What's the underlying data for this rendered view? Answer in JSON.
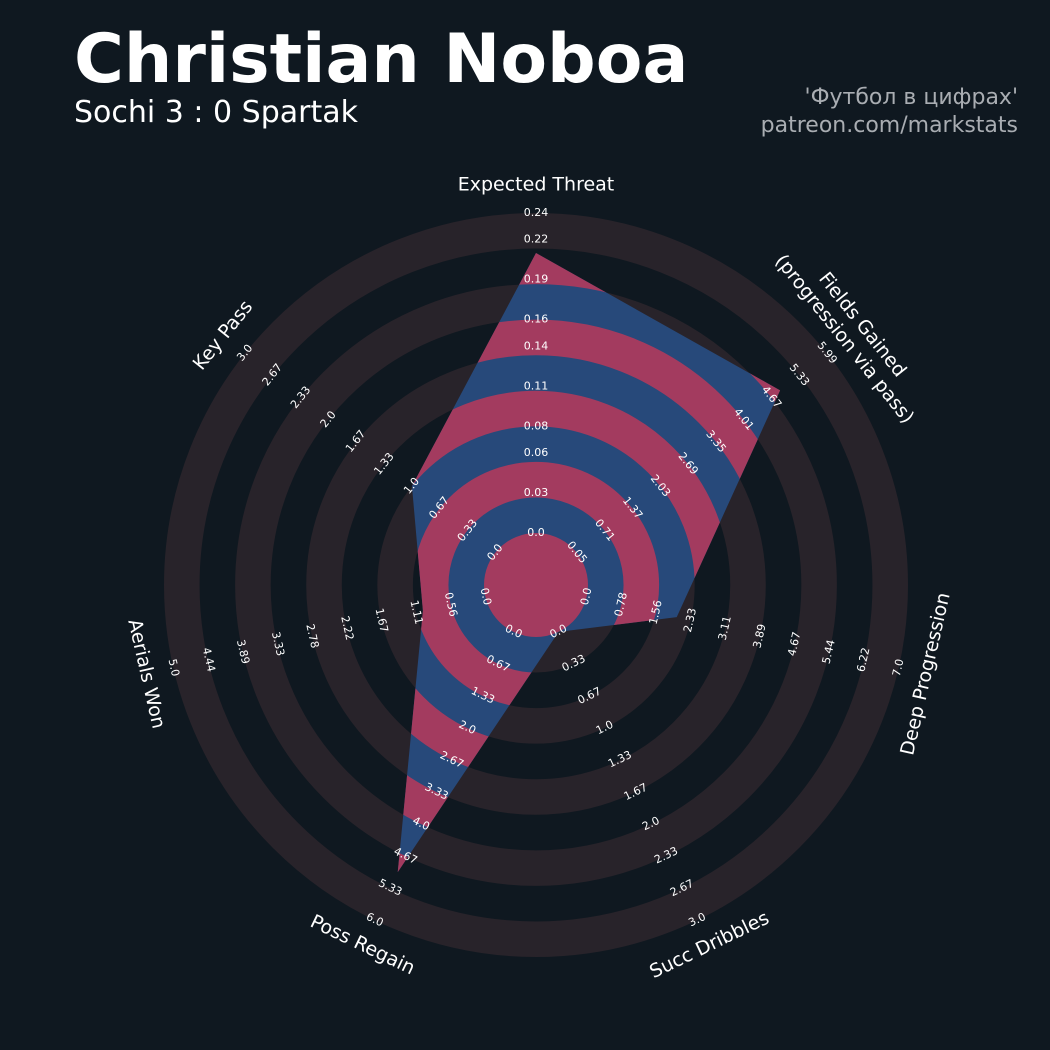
{
  "chart_data": {
    "type": "radar",
    "title": "Christian Noboa",
    "subtitle": "Sochi 3 : 0 Spartak",
    "credits": [
      "'Футбол в цифрах'",
      "patreon.com/markstats"
    ],
    "params": [
      {
        "label": "Expected Threat",
        "lim": [
          0,
          0.24
        ],
        "ticks": [
          {
            "value": 0,
            "label": "0.0"
          },
          0.03,
          0.06,
          0.08,
          0.11,
          0.14,
          0.16,
          0.19,
          0.22,
          0.24
        ]
      },
      {
        "label": [
          "Fields Gained",
          "(progression via pass)"
        ],
        "lim": [
          0.05,
          5.99
        ],
        "ticks": [
          0.05,
          0.71,
          1.37,
          2.03,
          2.69,
          3.35,
          4.01,
          4.67,
          5.33,
          5.99
        ]
      },
      {
        "label": "Deep Progression",
        "lim": [
          0,
          7
        ],
        "ticks": [
          {
            "value": 0,
            "label": "0.0"
          },
          0.78,
          1.56,
          2.33,
          3.11,
          3.89,
          4.67,
          5.44,
          6.22,
          {
            "value": 7,
            "label": "7.0"
          }
        ]
      },
      {
        "label": "Succ Dribbles",
        "lim": [
          0,
          3
        ],
        "ticks": [
          {
            "value": 0,
            "label": "0.0"
          },
          0.33,
          0.67,
          {
            "value": 1,
            "label": "1.0"
          },
          1.33,
          1.67,
          {
            "value": 2,
            "label": "2.0"
          },
          2.33,
          2.67,
          {
            "value": 3,
            "label": "3.0"
          }
        ]
      },
      {
        "label": "Poss Regain",
        "lim": [
          0,
          6
        ],
        "ticks": [
          {
            "value": 0,
            "label": "0.0"
          },
          0.67,
          1.33,
          {
            "value": 2,
            "label": "2.0"
          },
          2.67,
          3.33,
          {
            "value": 4,
            "label": "4.0"
          },
          4.67,
          5.33,
          {
            "value": 6,
            "label": "6.0"
          }
        ]
      },
      {
        "label": "Aerials Won",
        "lim": [
          0,
          5
        ],
        "ticks": [
          {
            "value": 0,
            "label": "0.0"
          },
          0.56,
          1.11,
          1.67,
          2.22,
          2.78,
          3.33,
          3.89,
          4.44,
          {
            "value": 5,
            "label": "5.0"
          }
        ]
      },
      {
        "label": "Key Pass",
        "lim": [
          0,
          3
        ],
        "ticks": [
          {
            "value": 0,
            "label": "0.0"
          },
          0.33,
          0.67,
          {
            "value": 1,
            "label": "1.0"
          },
          1.33,
          1.67,
          {
            "value": 2,
            "label": "2.0"
          },
          2.33,
          2.67,
          {
            "value": 3,
            "label": "3.0"
          }
        ]
      }
    ],
    "series": [
      {
        "values": [
          0.21,
          4.88,
          2.02,
          0,
          5.0,
          1.0,
          1.0
        ],
        "color": "#27497a",
        "ring_color": "#a33b5f"
      }
    ],
    "ring_color": "#28232a"
  }
}
